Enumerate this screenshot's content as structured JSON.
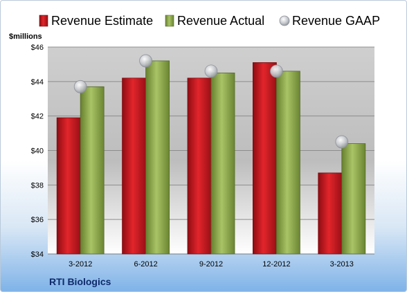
{
  "company": "RTI Biologics",
  "chart_data": {
    "type": "bar",
    "unit_label": "$millions",
    "categories": [
      "3-2012",
      "6-2012",
      "9-2012",
      "12-2012",
      "3-2013"
    ],
    "ylim": [
      34,
      46
    ],
    "yticks": [
      34,
      36,
      38,
      40,
      42,
      44,
      46
    ],
    "ytick_labels": [
      "$34",
      "$36",
      "$38",
      "$40",
      "$42",
      "$44",
      "$46"
    ],
    "grid": true,
    "legend_position": "top",
    "series": [
      {
        "name": "Revenue Estimate",
        "kind": "bar",
        "color": "#c0151c",
        "values": [
          41.9,
          44.2,
          44.2,
          45.1,
          38.7
        ]
      },
      {
        "name": "Revenue Actual",
        "kind": "bar",
        "color": "#8ea84b",
        "values": [
          43.7,
          45.2,
          44.5,
          44.6,
          40.4
        ]
      },
      {
        "name": "Revenue GAAP",
        "kind": "marker",
        "color": "#b8bcc4",
        "values": [
          43.7,
          45.2,
          44.6,
          44.6,
          40.5
        ]
      }
    ]
  }
}
